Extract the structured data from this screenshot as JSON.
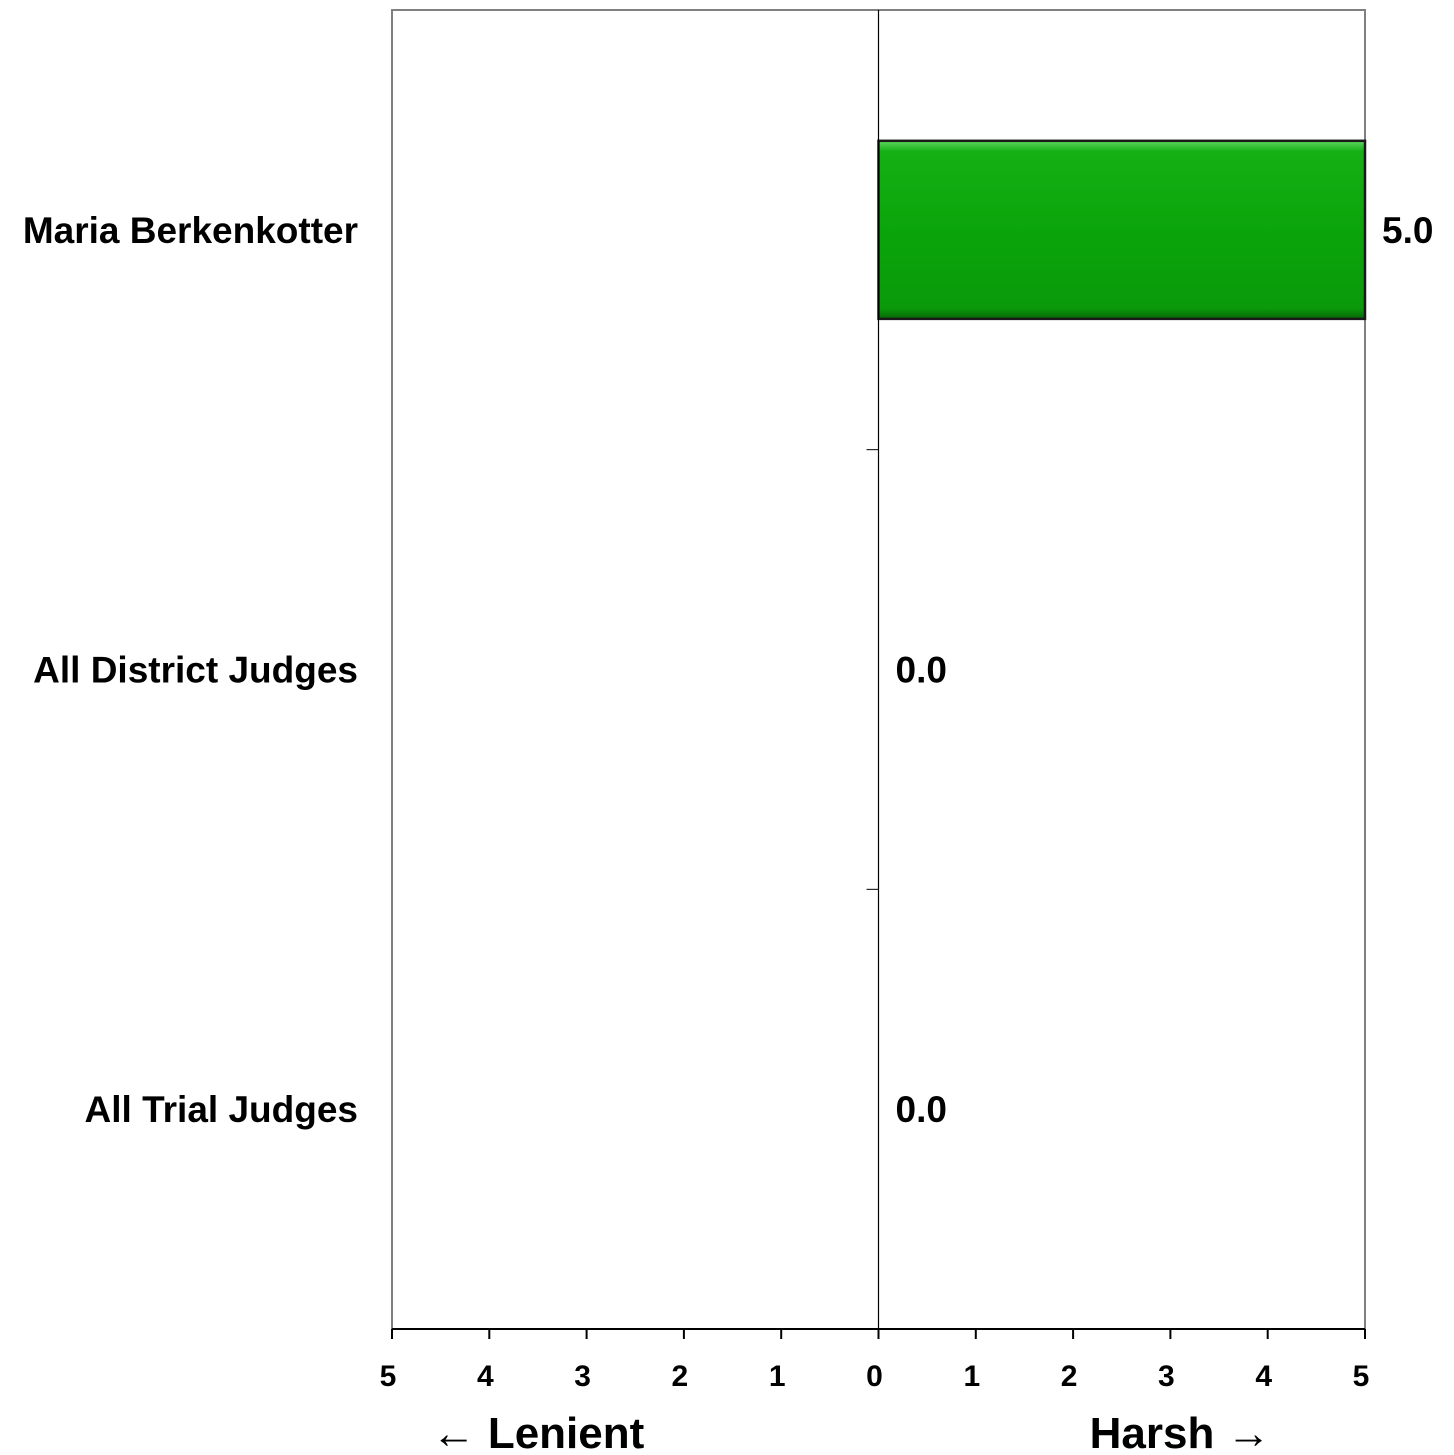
{
  "chart_data": {
    "type": "bar",
    "orientation": "horizontal",
    "categories": [
      "Maria Berkenkotter",
      "All District Judges",
      "All Trial Judges"
    ],
    "values": [
      5.0,
      0.0,
      0.0
    ],
    "value_labels": [
      "5.0",
      "0.0",
      "0.0"
    ],
    "xlim": [
      -5,
      5
    ],
    "x_tick_values": [
      -5,
      -4,
      -3,
      -2,
      -1,
      0,
      1,
      2,
      3,
      4,
      5
    ],
    "x_tick_labels": [
      "5",
      "4",
      "3",
      "2",
      "1",
      "0",
      "1",
      "2",
      "3",
      "4",
      "5"
    ],
    "direction_labels": {
      "left": "← Lenient",
      "right": "Harsh →"
    },
    "bar_color": "#0aa50a",
    "grid": false,
    "legend": "none"
  }
}
